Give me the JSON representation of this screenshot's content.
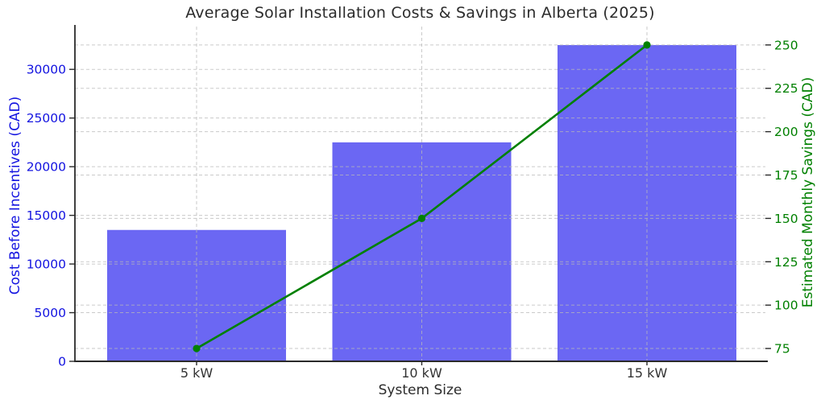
{
  "chart_data": {
    "type": "bar",
    "title": "Average Solar Installation Costs & Savings in Alberta (2025)",
    "xlabel": "System Size",
    "ylabel_left": "Cost Before Incentives (CAD)",
    "ylabel_right": "Estimated Monthly Savings (CAD)",
    "categories": [
      "5 kW",
      "10 kW",
      "15 kW"
    ],
    "series": [
      {
        "name": "Cost Before Incentives (CAD)",
        "type": "bar",
        "axis": "left",
        "values": [
          13500,
          22500,
          32500
        ],
        "color": "#6b67f3"
      },
      {
        "name": "Estimated Monthly Savings (CAD)",
        "type": "line",
        "axis": "right",
        "values": [
          75,
          150,
          250
        ],
        "color": "#008000"
      }
    ],
    "left_axis": {
      "ticks": [
        0,
        5000,
        10000,
        15000,
        20000,
        25000,
        30000
      ],
      "range": [
        0,
        34400
      ],
      "color": "#1414e0"
    },
    "right_axis": {
      "ticks": [
        75,
        100,
        125,
        150,
        175,
        200,
        225,
        250
      ],
      "range": [
        67.6,
        260.6
      ],
      "color": "#008000"
    },
    "grid": "dashed horizontal (both axes) and vertical per category",
    "legend": "none",
    "colors": {
      "title": "#2b2b2b",
      "x_tick_labels": "#333333",
      "spine": "#2a2a2a",
      "gridline": "#b9b9b9"
    }
  }
}
